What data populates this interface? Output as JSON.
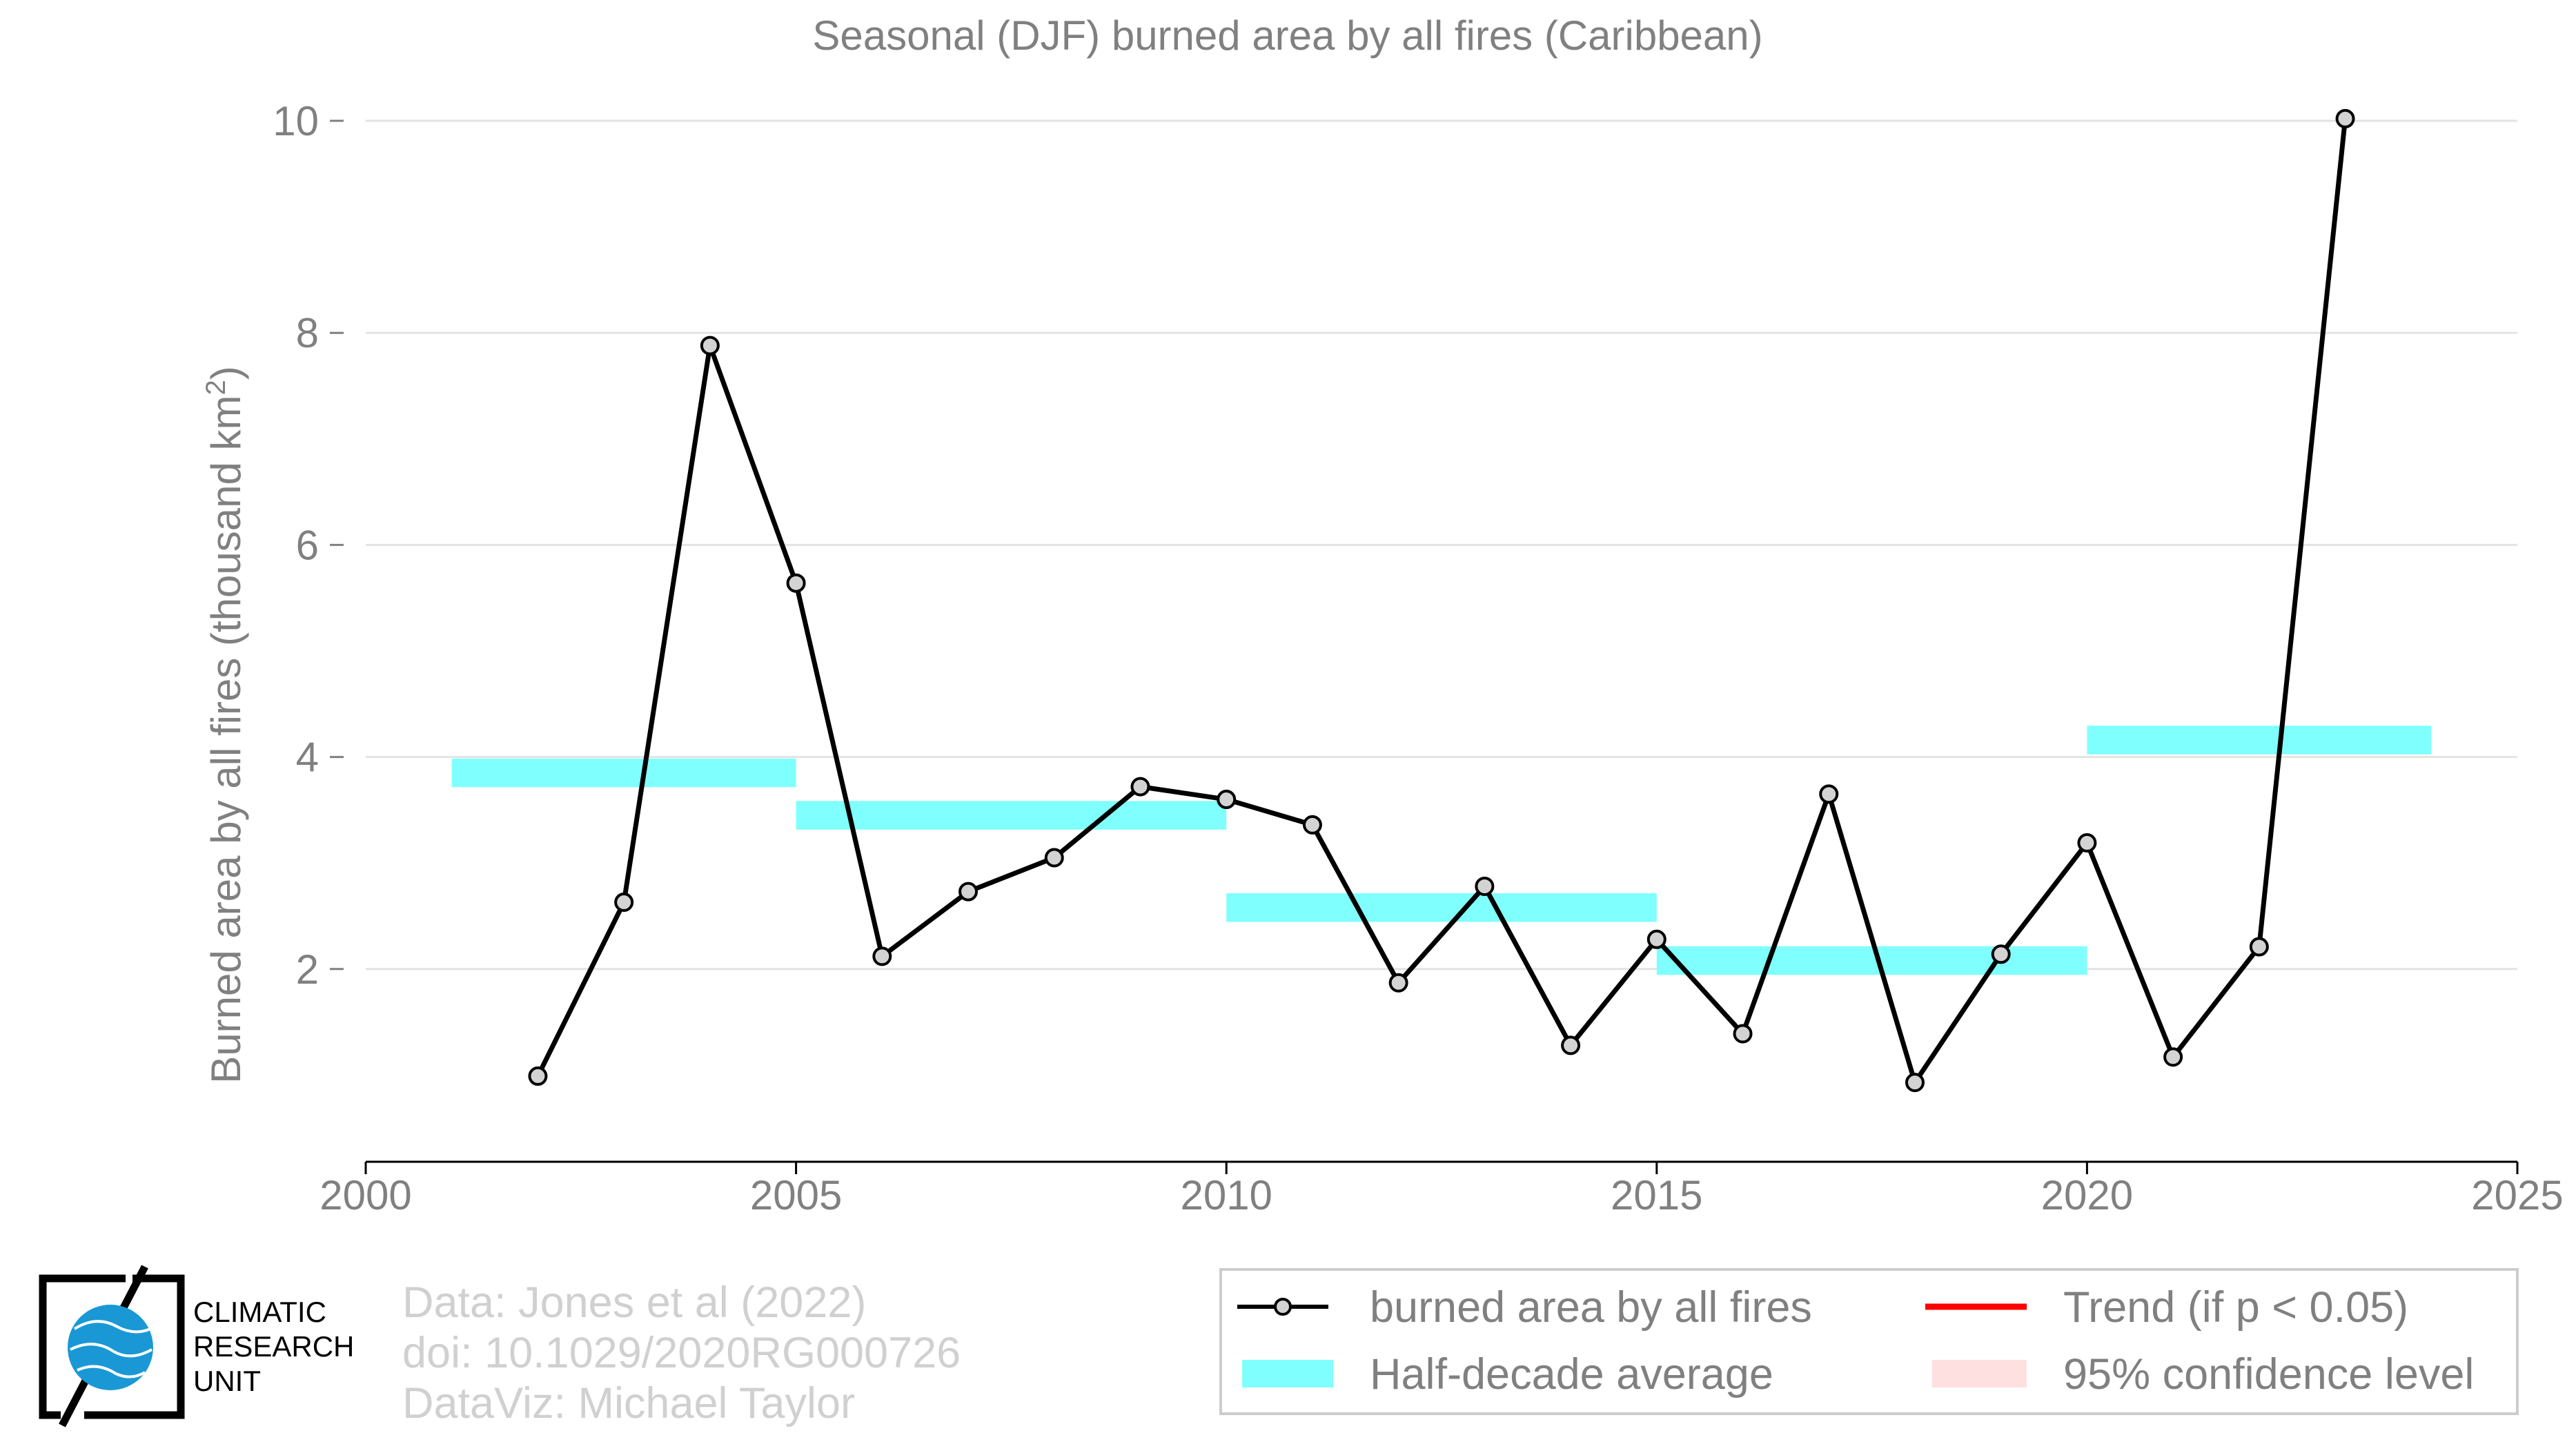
{
  "chart_data": {
    "type": "line",
    "title": "Seasonal (DJF) burned area by all fires (Caribbean)",
    "ylabel": "Burned area by all fires (thousand km",
    "ylabel_sup": "2",
    "ylabel_tail": ")",
    "xlim": [
      2000,
      2025
    ],
    "ylim": [
      0,
      10
    ],
    "x_ticks": [
      2000,
      2005,
      2010,
      2015,
      2020,
      2025
    ],
    "y_ticks": [
      2,
      4,
      6,
      8,
      10
    ],
    "grid": true,
    "legend_position": "bottom-right",
    "series": [
      {
        "name": "burned area by all fires",
        "color": "#000000",
        "marker_fill": "#d3d3d3",
        "x": [
          2002,
          2003,
          2004,
          2005,
          2006,
          2007,
          2008,
          2009,
          2010,
          2011,
          2012,
          2013,
          2014,
          2015,
          2016,
          2017,
          2018,
          2019,
          2020,
          2021,
          2022,
          2023
        ],
        "values": [
          0.99,
          2.63,
          7.88,
          5.64,
          2.12,
          2.73,
          3.05,
          3.72,
          3.6,
          3.36,
          1.87,
          2.78,
          1.28,
          2.28,
          1.39,
          3.65,
          0.93,
          2.14,
          3.19,
          1.17,
          2.21,
          10.02
        ]
      }
    ],
    "half_decade_average": {
      "name": "Half-decade average",
      "color": "#80ffff",
      "segments": [
        {
          "x0": 2001,
          "x1": 2005,
          "y": 3.85
        },
        {
          "x0": 2005,
          "x1": 2010,
          "y": 3.45
        },
        {
          "x0": 2010,
          "x1": 2015,
          "y": 2.58
        },
        {
          "x0": 2015,
          "x1": 2020,
          "y": 2.08
        },
        {
          "x0": 2020,
          "x1": 2024,
          "y": 4.16
        }
      ]
    },
    "legend": [
      {
        "label": "burned area by all fires",
        "kind": "line-marker",
        "color": "#000000"
      },
      {
        "label": "Trend (if p < 0.05)",
        "kind": "line",
        "color": "#ff0000"
      },
      {
        "label": "Half-decade average",
        "kind": "band",
        "color": "#80ffff"
      },
      {
        "label": "95% confidence level",
        "kind": "band",
        "color": "#ffe0e0"
      }
    ]
  },
  "credits": {
    "line1": "Data: Jones et al (2022)",
    "line2": "doi: 10.1029/2020RG000726",
    "line3": "DataViz: Michael Taylor"
  },
  "logo": {
    "line1": "CLIMATIC",
    "line2": "RESEARCH",
    "line3": "UNIT"
  }
}
